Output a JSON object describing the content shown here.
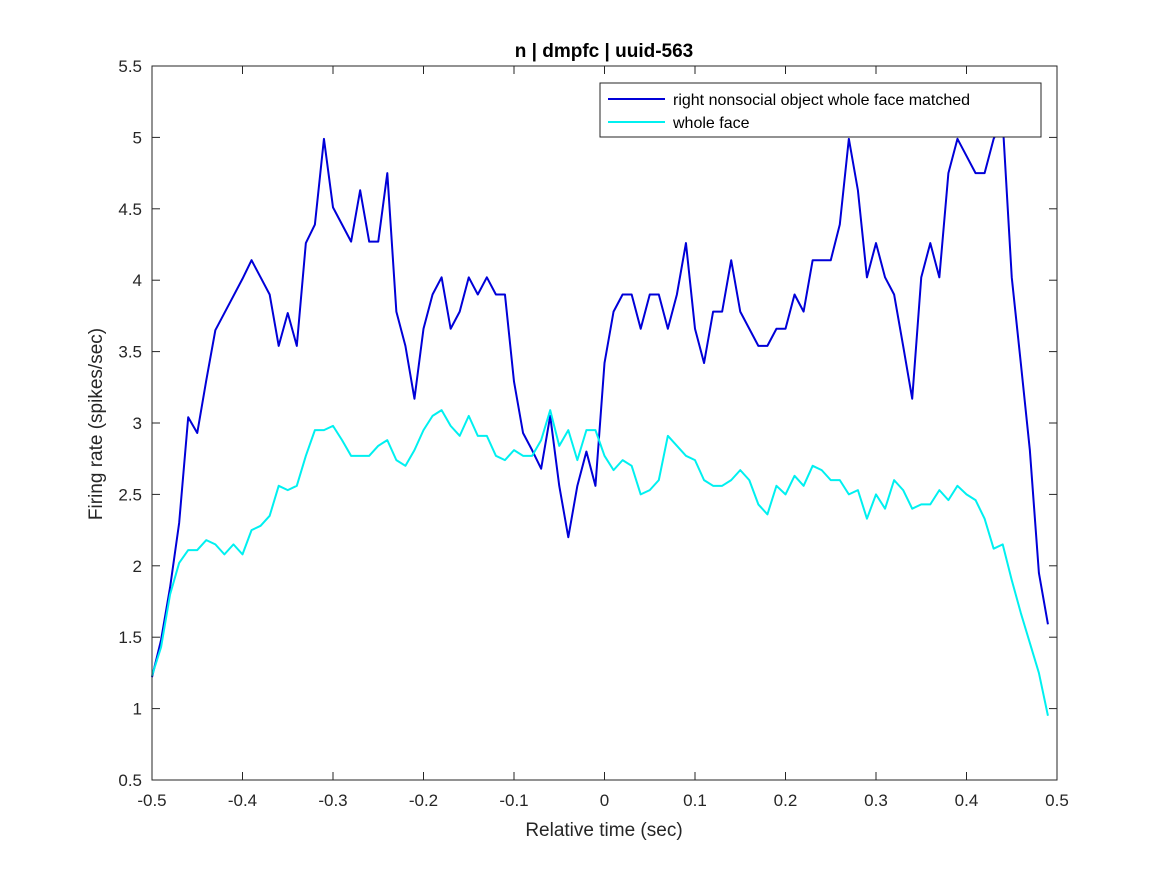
{
  "chart_data": {
    "type": "line",
    "title": "n | dmpfc | uuid-563",
    "xlabel": "Relative time (sec)",
    "ylabel": "Firing rate (spikes/sec)",
    "xlim": [
      -0.5,
      0.5
    ],
    "ylim": [
      0.5,
      5.5
    ],
    "xticks": [
      -0.5,
      -0.4,
      -0.3,
      -0.2,
      -0.1,
      0,
      0.1,
      0.2,
      0.3,
      0.4,
      0.5
    ],
    "xtick_labels": [
      "-0.5",
      "-0.4",
      "-0.3",
      "-0.2",
      "-0.1",
      "0",
      "0.1",
      "0.2",
      "0.3",
      "0.4",
      "0.5"
    ],
    "yticks": [
      0.5,
      1,
      1.5,
      2,
      2.5,
      3,
      3.5,
      4,
      4.5,
      5,
      5.5
    ],
    "ytick_labels": [
      "0.5",
      "1",
      "1.5",
      "2",
      "2.5",
      "3",
      "3.5",
      "4",
      "4.5",
      "5",
      "5.5"
    ],
    "grid": false,
    "legend_position": "top-right",
    "x": [
      -0.5,
      -0.49,
      -0.48,
      -0.47,
      -0.46,
      -0.45,
      -0.44,
      -0.43,
      -0.42,
      -0.41,
      -0.4,
      -0.39,
      -0.38,
      -0.37,
      -0.36,
      -0.35,
      -0.34,
      -0.33,
      -0.32,
      -0.31,
      -0.3,
      -0.29,
      -0.28,
      -0.27,
      -0.26,
      -0.25,
      -0.24,
      -0.23,
      -0.22,
      -0.21,
      -0.2,
      -0.19,
      -0.18,
      -0.17,
      -0.16,
      -0.15,
      -0.14,
      -0.13,
      -0.12,
      -0.11,
      -0.1,
      -0.09,
      -0.08,
      -0.07,
      -0.06,
      -0.05,
      -0.04,
      -0.03,
      -0.02,
      -0.01,
      0,
      0.01,
      0.02,
      0.03,
      0.04,
      0.05,
      0.06,
      0.07,
      0.08,
      0.09,
      0.1,
      0.11,
      0.12,
      0.13,
      0.14,
      0.15,
      0.16,
      0.17,
      0.18,
      0.19,
      0.2,
      0.21,
      0.22,
      0.23,
      0.24,
      0.25,
      0.26,
      0.27,
      0.28,
      0.29,
      0.3,
      0.31,
      0.32,
      0.33,
      0.34,
      0.35,
      0.36,
      0.37,
      0.38,
      0.39,
      0.4,
      0.41,
      0.42,
      0.43,
      0.44,
      0.45,
      0.46,
      0.47,
      0.48,
      0.49
    ],
    "series": [
      {
        "name": "right nonsocial object whole face matched",
        "color": "#0000d8",
        "values": [
          1.22,
          1.48,
          1.85,
          2.3,
          3.04,
          2.93,
          3.3,
          3.65,
          3.77,
          3.89,
          4.01,
          4.14,
          4.02,
          3.9,
          3.54,
          3.77,
          3.54,
          4.26,
          4.39,
          4.99,
          4.51,
          4.39,
          4.27,
          4.63,
          4.27,
          4.27,
          4.75,
          3.78,
          3.54,
          3.17,
          3.66,
          3.9,
          4.02,
          3.66,
          3.78,
          4.02,
          3.9,
          4.02,
          3.9,
          3.9,
          3.29,
          2.93,
          2.81,
          2.68,
          3.05,
          2.56,
          2.2,
          2.56,
          2.8,
          2.56,
          3.42,
          3.78,
          3.9,
          3.9,
          3.66,
          3.9,
          3.9,
          3.66,
          3.9,
          4.26,
          3.66,
          3.42,
          3.78,
          3.78,
          4.14,
          3.78,
          3.66,
          3.54,
          3.54,
          3.66,
          3.66,
          3.9,
          3.78,
          4.14,
          4.14,
          4.14,
          4.39,
          4.99,
          4.63,
          4.02,
          4.26,
          4.02,
          3.9,
          3.54,
          3.17,
          4.02,
          4.26,
          4.02,
          4.75,
          4.99,
          4.87,
          4.75,
          4.75,
          4.99,
          5.11,
          4.02,
          3.42,
          2.81,
          1.95,
          1.59
        ]
      },
      {
        "name": "whole face",
        "color": "#00f0f0",
        "values": [
          1.23,
          1.43,
          1.8,
          2.02,
          2.11,
          2.11,
          2.18,
          2.15,
          2.08,
          2.15,
          2.08,
          2.25,
          2.28,
          2.35,
          2.56,
          2.53,
          2.56,
          2.77,
          2.95,
          2.95,
          2.98,
          2.88,
          2.77,
          2.77,
          2.77,
          2.84,
          2.88,
          2.74,
          2.7,
          2.81,
          2.95,
          3.05,
          3.09,
          2.98,
          2.91,
          3.05,
          2.91,
          2.91,
          2.77,
          2.74,
          2.81,
          2.77,
          2.77,
          2.88,
          3.09,
          2.84,
          2.95,
          2.74,
          2.95,
          2.95,
          2.77,
          2.67,
          2.74,
          2.7,
          2.5,
          2.53,
          2.6,
          2.91,
          2.84,
          2.77,
          2.74,
          2.6,
          2.56,
          2.56,
          2.6,
          2.67,
          2.6,
          2.43,
          2.36,
          2.56,
          2.5,
          2.63,
          2.56,
          2.7,
          2.67,
          2.6,
          2.6,
          2.5,
          2.53,
          2.33,
          2.5,
          2.4,
          2.6,
          2.53,
          2.4,
          2.43,
          2.43,
          2.53,
          2.46,
          2.56,
          2.5,
          2.46,
          2.33,
          2.12,
          2.15,
          1.9,
          1.67,
          1.46,
          1.25,
          0.95
        ]
      }
    ]
  }
}
